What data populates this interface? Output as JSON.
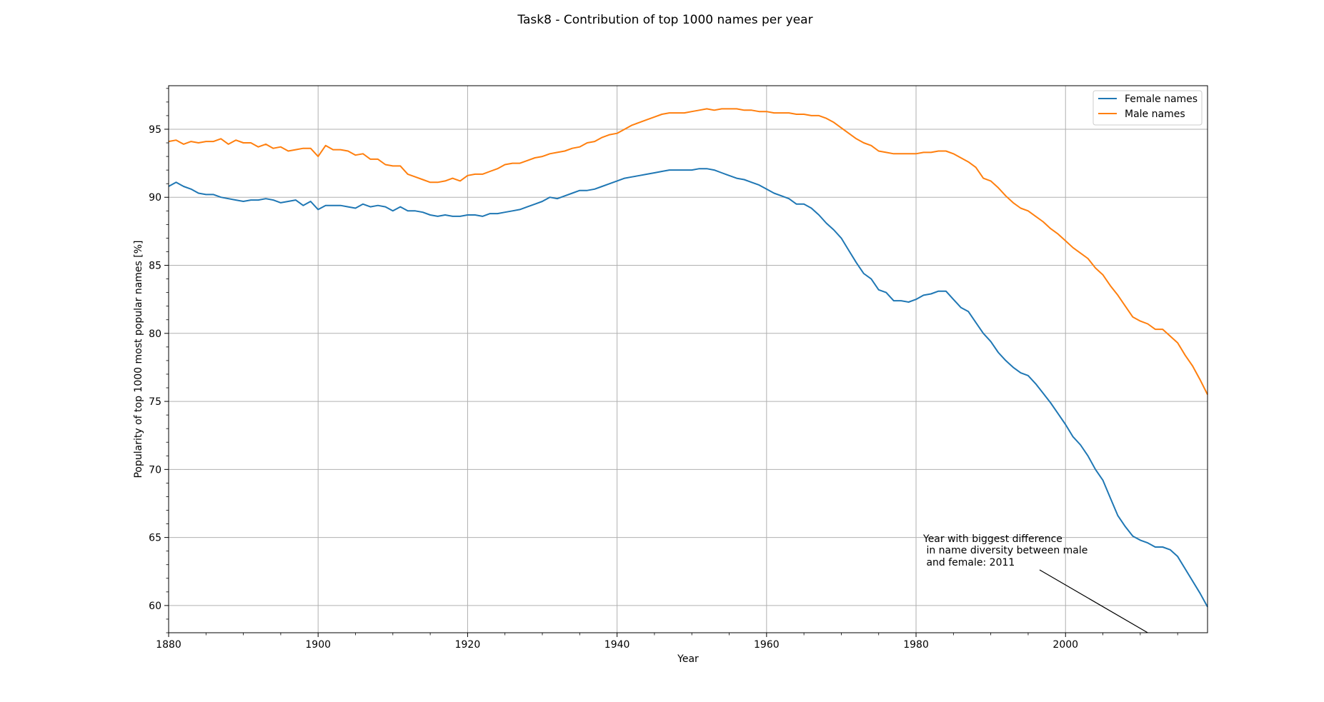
{
  "chart_data": {
    "type": "line",
    "title": "Task8 - Contribution of top 1000 names per year",
    "xlabel": "Year",
    "ylabel": "Popularity of top 1000 most popular names [%]",
    "xlim": [
      1880,
      2019
    ],
    "ylim": [
      58,
      98.2
    ],
    "xticks": [
      1880,
      1900,
      1920,
      1940,
      1960,
      1980,
      2000
    ],
    "yticks": [
      60,
      65,
      70,
      75,
      80,
      85,
      90,
      95
    ],
    "grid": true,
    "legend_position": "top-right",
    "series": [
      {
        "name": "Female names",
        "color": "#1f77b4",
        "x": [
          1880,
          1881,
          1882,
          1883,
          1884,
          1885,
          1886,
          1887,
          1888,
          1889,
          1890,
          1891,
          1892,
          1893,
          1894,
          1895,
          1896,
          1897,
          1898,
          1899,
          1900,
          1901,
          1902,
          1903,
          1904,
          1905,
          1906,
          1907,
          1908,
          1909,
          1910,
          1911,
          1912,
          1913,
          1914,
          1915,
          1916,
          1917,
          1918,
          1919,
          1920,
          1921,
          1922,
          1923,
          1924,
          1925,
          1926,
          1927,
          1928,
          1929,
          1930,
          1931,
          1932,
          1933,
          1934,
          1935,
          1936,
          1937,
          1938,
          1939,
          1940,
          1941,
          1942,
          1943,
          1944,
          1945,
          1946,
          1947,
          1948,
          1949,
          1950,
          1951,
          1952,
          1953,
          1954,
          1955,
          1956,
          1957,
          1958,
          1959,
          1960,
          1961,
          1962,
          1963,
          1964,
          1965,
          1966,
          1967,
          1968,
          1969,
          1970,
          1971,
          1972,
          1973,
          1974,
          1975,
          1976,
          1977,
          1978,
          1979,
          1980,
          1981,
          1982,
          1983,
          1984,
          1985,
          1986,
          1987,
          1988,
          1989,
          1990,
          1991,
          1992,
          1993,
          1994,
          1995,
          1996,
          1997,
          1998,
          1999,
          2000,
          2001,
          2002,
          2003,
          2004,
          2005,
          2006,
          2007,
          2008,
          2009,
          2010,
          2011,
          2012,
          2013,
          2014,
          2015,
          2016,
          2017,
          2018,
          2019
        ],
        "values": [
          90.8,
          91.1,
          90.8,
          90.6,
          90.3,
          90.2,
          90.2,
          90.0,
          89.9,
          89.8,
          89.7,
          89.8,
          89.8,
          89.9,
          89.8,
          89.6,
          89.7,
          89.8,
          89.4,
          89.7,
          89.1,
          89.4,
          89.4,
          89.4,
          89.3,
          89.2,
          89.5,
          89.3,
          89.4,
          89.3,
          89.0,
          89.3,
          89.0,
          89.0,
          88.9,
          88.7,
          88.6,
          88.7,
          88.6,
          88.6,
          88.7,
          88.7,
          88.6,
          88.8,
          88.8,
          88.9,
          89.0,
          89.1,
          89.3,
          89.5,
          89.7,
          90.0,
          89.9,
          90.1,
          90.3,
          90.5,
          90.5,
          90.6,
          90.8,
          91.0,
          91.2,
          91.4,
          91.5,
          91.6,
          91.7,
          91.8,
          91.9,
          92.0,
          92.0,
          92.0,
          92.0,
          92.1,
          92.1,
          92.0,
          91.8,
          91.6,
          91.4,
          91.3,
          91.1,
          90.9,
          90.6,
          90.3,
          90.1,
          89.9,
          89.5,
          89.5,
          89.2,
          88.7,
          88.1,
          87.6,
          87.0,
          86.1,
          85.2,
          84.4,
          84.0,
          83.2,
          83.0,
          82.4,
          82.4,
          82.3,
          82.5,
          82.8,
          82.9,
          83.1,
          83.1,
          82.5,
          81.9,
          81.6,
          80.8,
          80.0,
          79.4,
          78.6,
          78.0,
          77.5,
          77.1,
          76.9,
          76.3,
          75.6,
          74.9,
          74.1,
          73.3,
          72.4,
          71.8,
          71.0,
          70.0,
          69.2,
          67.9,
          66.6,
          65.8,
          65.1,
          64.8,
          64.6,
          64.3,
          64.3,
          64.1,
          63.6,
          62.7,
          61.8,
          60.9,
          59.9
        ]
      },
      {
        "name": "Male names",
        "color": "#ff7f0e",
        "x": [
          1880,
          1881,
          1882,
          1883,
          1884,
          1885,
          1886,
          1887,
          1888,
          1889,
          1890,
          1891,
          1892,
          1893,
          1894,
          1895,
          1896,
          1897,
          1898,
          1899,
          1900,
          1901,
          1902,
          1903,
          1904,
          1905,
          1906,
          1907,
          1908,
          1909,
          1910,
          1911,
          1912,
          1913,
          1914,
          1915,
          1916,
          1917,
          1918,
          1919,
          1920,
          1921,
          1922,
          1923,
          1924,
          1925,
          1926,
          1927,
          1928,
          1929,
          1930,
          1931,
          1932,
          1933,
          1934,
          1935,
          1936,
          1937,
          1938,
          1939,
          1940,
          1941,
          1942,
          1943,
          1944,
          1945,
          1946,
          1947,
          1948,
          1949,
          1950,
          1951,
          1952,
          1953,
          1954,
          1955,
          1956,
          1957,
          1958,
          1959,
          1960,
          1961,
          1962,
          1963,
          1964,
          1965,
          1966,
          1967,
          1968,
          1969,
          1970,
          1971,
          1972,
          1973,
          1974,
          1975,
          1976,
          1977,
          1978,
          1979,
          1980,
          1981,
          1982,
          1983,
          1984,
          1985,
          1986,
          1987,
          1988,
          1989,
          1990,
          1991,
          1992,
          1993,
          1994,
          1995,
          1996,
          1997,
          1998,
          1999,
          2000,
          2001,
          2002,
          2003,
          2004,
          2005,
          2006,
          2007,
          2008,
          2009,
          2010,
          2011,
          2012,
          2013,
          2014,
          2015,
          2016,
          2017,
          2018,
          2019
        ],
        "values": [
          94.1,
          94.2,
          93.9,
          94.1,
          94.0,
          94.1,
          94.1,
          94.3,
          93.9,
          94.2,
          94.0,
          94.0,
          93.7,
          93.9,
          93.6,
          93.7,
          93.4,
          93.5,
          93.6,
          93.6,
          93.0,
          93.8,
          93.5,
          93.5,
          93.4,
          93.1,
          93.2,
          92.8,
          92.8,
          92.4,
          92.3,
          92.3,
          91.7,
          91.5,
          91.3,
          91.1,
          91.1,
          91.2,
          91.4,
          91.2,
          91.6,
          91.7,
          91.7,
          91.9,
          92.1,
          92.4,
          92.5,
          92.5,
          92.7,
          92.9,
          93.0,
          93.2,
          93.3,
          93.4,
          93.6,
          93.7,
          94.0,
          94.1,
          94.4,
          94.6,
          94.7,
          95.0,
          95.3,
          95.5,
          95.7,
          95.9,
          96.1,
          96.2,
          96.2,
          96.2,
          96.3,
          96.4,
          96.5,
          96.4,
          96.5,
          96.5,
          96.5,
          96.4,
          96.4,
          96.3,
          96.3,
          96.2,
          96.2,
          96.2,
          96.1,
          96.1,
          96.0,
          96.0,
          95.8,
          95.5,
          95.1,
          94.7,
          94.3,
          94.0,
          93.8,
          93.4,
          93.3,
          93.2,
          93.2,
          93.2,
          93.2,
          93.3,
          93.3,
          93.4,
          93.4,
          93.2,
          92.9,
          92.6,
          92.2,
          91.4,
          91.2,
          90.7,
          90.1,
          89.6,
          89.2,
          89.0,
          88.6,
          88.2,
          87.7,
          87.3,
          86.8,
          86.3,
          85.9,
          85.5,
          84.8,
          84.3,
          83.5,
          82.8,
          82.0,
          81.2,
          80.9,
          80.7,
          80.3,
          80.3,
          79.8,
          79.3,
          78.4,
          77.6,
          76.6,
          75.5
        ]
      }
    ],
    "annotation": {
      "text_lines": [
        "Year with biggest difference",
        " in name diversity between male",
        " and female: 2011"
      ],
      "arrow_target": [
        2011,
        58.0
      ]
    }
  }
}
